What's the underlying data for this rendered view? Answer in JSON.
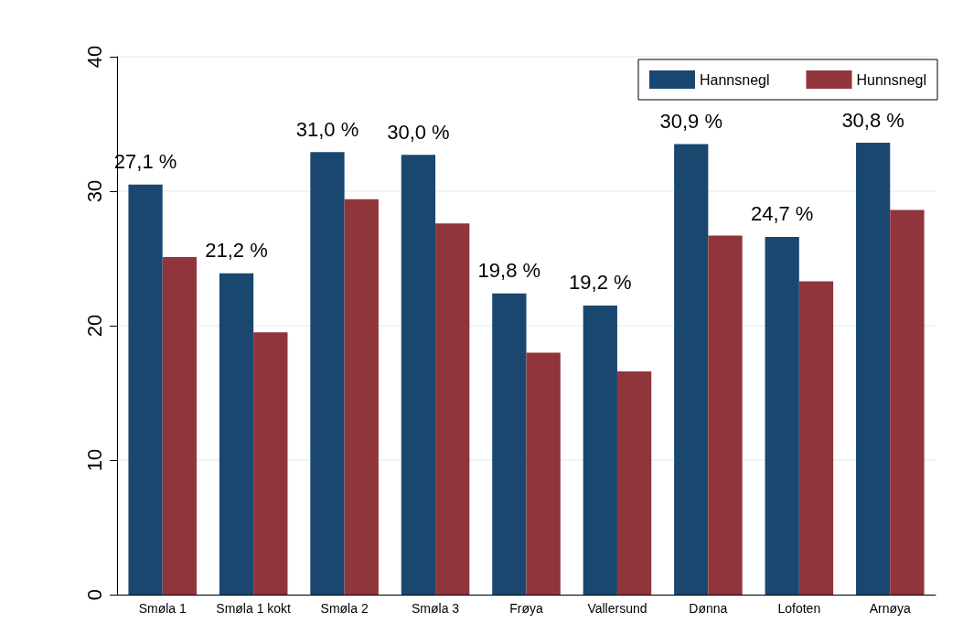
{
  "chart_data": {
    "type": "bar",
    "categories": [
      "Smøla 1",
      "Smøla 1 kokt",
      "Smøla 2",
      "Smøla 3",
      "Frøya",
      "Vallersund",
      "Dønna",
      "Lofoten",
      "Arnøya"
    ],
    "series": [
      {
        "name": "Hannsnegl",
        "color": "#1a476f",
        "values": [
          30.5,
          23.9,
          32.9,
          32.7,
          22.4,
          21.5,
          33.5,
          26.6,
          33.6
        ]
      },
      {
        "name": "Hunnsnegl",
        "color": "#90353b",
        "values": [
          25.1,
          19.5,
          29.4,
          27.6,
          18.0,
          16.6,
          26.7,
          23.3,
          28.6
        ]
      }
    ],
    "annotations": [
      {
        "text": "27,1 %",
        "x": "Smøla 1",
        "y": 30.5
      },
      {
        "text": "21,2 %",
        "x": "Smøla 1 kokt",
        "y": 23.9
      },
      {
        "text": "31,0 %",
        "x": "Smøla 2",
        "y": 32.9
      },
      {
        "text": "30,0 %",
        "x": "Smøla 3",
        "y": 32.7
      },
      {
        "text": "19,8 %",
        "x": "Frøya",
        "y": 22.4
      },
      {
        "text": "19,2 %",
        "x": "Vallersund",
        "y": 21.5
      },
      {
        "text": "30,9 %",
        "x": "Dønna",
        "y": 33.5
      },
      {
        "text": "24,7 %",
        "x": "Lofoten",
        "y": 26.6
      },
      {
        "text": "30,8 %",
        "x": "Arnøya",
        "y": 33.6
      }
    ],
    "ylim": [
      0,
      40
    ],
    "yticks": [
      0,
      10,
      20,
      30,
      40
    ],
    "grid": "y",
    "legend": "top right"
  }
}
